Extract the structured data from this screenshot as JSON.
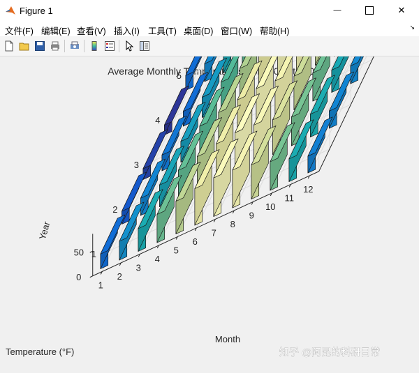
{
  "window": {
    "title": "Figure 1",
    "minimize_glyph": "—",
    "close_glyph": "✕"
  },
  "menu": {
    "items": [
      {
        "label": "文件(F)"
      },
      {
        "label": "编辑(E)"
      },
      {
        "label": "查看(V)"
      },
      {
        "label": "插入(I)"
      },
      {
        "label": "工具(T)"
      },
      {
        "label": "桌面(D)"
      },
      {
        "label": "窗口(W)"
      },
      {
        "label": "帮助(H)"
      }
    ],
    "overflow_glyph": "↘"
  },
  "toolbar": {
    "icons": [
      "new-figure-icon",
      "open-file-icon",
      "save-icon",
      "print-icon",
      "print-preview-icon",
      "insert-colorbar-icon",
      "insert-legend-icon",
      "edit-plot-icon",
      "property-inspector-icon"
    ]
  },
  "watermark": "知乎 @阿昆的科研日常",
  "chart_data": {
    "type": "bar3",
    "title": "Average Monthly Temperatures from 2012 to 2016",
    "xlabel": "Month",
    "ylabel": "Year",
    "zlabel": "Temperature (°F)",
    "x_ticks": [
      "1",
      "2",
      "3",
      "4",
      "5",
      "6",
      "7",
      "8",
      "9",
      "10",
      "11",
      "12"
    ],
    "y_ticks": [
      "1",
      "2",
      "3",
      "4",
      "5"
    ],
    "z_ticks": [
      "0",
      "50"
    ],
    "zlim": [
      0,
      85
    ],
    "colormap": "parula-like",
    "grid": true,
    "years": [
      "1",
      "2",
      "3",
      "4",
      "5"
    ],
    "months": [
      "1",
      "2",
      "3",
      "4",
      "5",
      "6",
      "7",
      "8",
      "9",
      "10",
      "11",
      "12"
    ],
    "values": [
      [
        30,
        38,
        46,
        57,
        66,
        74,
        78,
        76,
        69,
        58,
        46,
        34
      ],
      [
        26,
        35,
        44,
        56,
        66,
        74,
        79,
        77,
        70,
        58,
        46,
        35
      ],
      [
        22,
        32,
        42,
        55,
        65,
        73,
        78,
        76,
        68,
        57,
        45,
        36
      ],
      [
        20,
        30,
        41,
        54,
        64,
        73,
        77,
        75,
        68,
        56,
        44,
        36
      ],
      [
        30,
        36,
        45,
        55,
        65,
        74,
        78,
        76,
        69,
        57,
        45,
        35
      ]
    ]
  }
}
